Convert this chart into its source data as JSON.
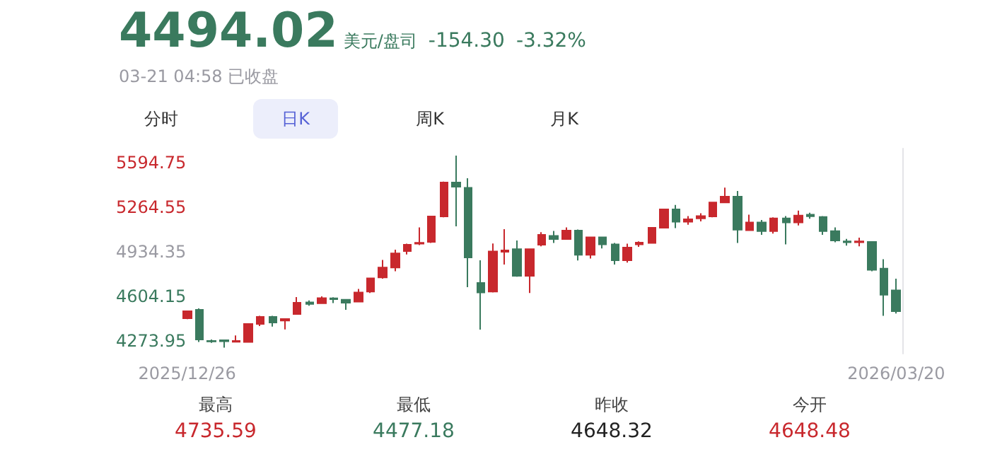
{
  "chart_data": {
    "type": "candlestick",
    "title": "4494.02",
    "annotations": [
      "美元/盘司",
      "-154.30",
      "-3.32%",
      "03-21 04:58 已收盘",
      "分时",
      "日K",
      "周K",
      "月K",
      "最高",
      "4735.59",
      "最低",
      "4477.18",
      "昨收",
      "4648.32",
      "今开",
      "4648.48"
    ],
    "categories": [
      "2025/12/26",
      null,
      null,
      null,
      null,
      null,
      null,
      null,
      null,
      null,
      null,
      null,
      null,
      null,
      null,
      null,
      null,
      null,
      null,
      null,
      null,
      null,
      null,
      null,
      null,
      null,
      null,
      null,
      null,
      null,
      null,
      null,
      null,
      null,
      null,
      null,
      null,
      null,
      null,
      null,
      null,
      null,
      null,
      null,
      null,
      null,
      null,
      null,
      null,
      null,
      null,
      null,
      null,
      null,
      null,
      null,
      null,
      null,
      "2026/03/20"
    ],
    "ohlc": [
      [
        4442,
        4500,
        4435,
        4494
      ],
      [
        4505,
        4515,
        4267,
        4285
      ],
      [
        4275,
        4285,
        4260,
        4270
      ],
      [
        4280,
        4283,
        4225,
        4272
      ],
      [
        4268,
        4315,
        4265,
        4275
      ],
      [
        4267,
        4405,
        4265,
        4400
      ],
      [
        4400,
        4460,
        4385,
        4452
      ],
      [
        4452,
        4460,
        4380,
        4410
      ],
      [
        4425,
        4440,
        4360,
        4437
      ],
      [
        4473,
        4599,
        4470,
        4557
      ],
      [
        4560,
        4575,
        4535,
        4548
      ],
      [
        4554,
        4605,
        4550,
        4592
      ],
      [
        4590,
        4598,
        4555,
        4584
      ],
      [
        4580,
        4585,
        4505,
        4558
      ],
      [
        4565,
        4660,
        4560,
        4634
      ],
      [
        4640,
        4740,
        4630,
        4738
      ],
      [
        4745,
        4875,
        4735,
        4818
      ],
      [
        4818,
        4950,
        4790,
        4923
      ],
      [
        4940,
        4995,
        4915,
        4987
      ],
      [
        4995,
        5115,
        4985,
        5002
      ],
      [
        5008,
        5200,
        5000,
        5197
      ],
      [
        5197,
        5455,
        5190,
        5448
      ],
      [
        5448,
        5647,
        5123,
        5417
      ],
      [
        5409,
        5480,
        4673,
        4893
      ],
      [
        4704,
        4872,
        4358,
        4634
      ],
      [
        4640,
        4997,
        4634,
        4937
      ],
      [
        4935,
        5102,
        4840,
        4945
      ],
      [
        4955,
        5018,
        4750,
        4756
      ],
      [
        4756,
        4960,
        4630,
        4955
      ],
      [
        4987,
        5080,
        4975,
        5060
      ],
      [
        5053,
        5090,
        5000,
        5029
      ],
      [
        5029,
        5115,
        5025,
        5092
      ],
      [
        5092,
        5100,
        4870,
        4913
      ],
      [
        4913,
        5045,
        4885,
        5042
      ],
      [
        5042,
        5045,
        4960,
        4990
      ],
      [
        4990,
        5000,
        4840,
        4872
      ],
      [
        4872,
        4995,
        4855,
        4966
      ],
      [
        4990,
        5012,
        4972,
        5003
      ],
      [
        5000,
        5118,
        4995,
        5113
      ],
      [
        5113,
        5255,
        5108,
        5249
      ],
      [
        5249,
        5282,
        5110,
        5158
      ],
      [
        5158,
        5200,
        5135,
        5176
      ],
      [
        5183,
        5220,
        5160,
        5200
      ],
      [
        5197,
        5305,
        5190,
        5301
      ],
      [
        5301,
        5410,
        5295,
        5343
      ],
      [
        5343,
        5385,
        5000,
        5099
      ],
      [
        5095,
        5210,
        5090,
        5152
      ],
      [
        5152,
        5170,
        5060,
        5088
      ],
      [
        5088,
        5190,
        5070,
        5183
      ],
      [
        5183,
        5200,
        4990,
        5152
      ],
      [
        5152,
        5240,
        5130,
        5204
      ],
      [
        5210,
        5225,
        5180,
        5198
      ],
      [
        5193,
        5200,
        5060,
        5088
      ],
      [
        5088,
        5115,
        5005,
        5018
      ],
      [
        5012,
        5030,
        4980,
        5005
      ],
      [
        5005,
        5040,
        4975,
        5012
      ],
      [
        5008,
        5010,
        4790,
        4801
      ],
      [
        4810,
        4880,
        4460,
        4617
      ],
      [
        4648.48,
        4735.59,
        4477.18,
        4494.02
      ]
    ],
    "ylim": [
      4180,
      5700
    ],
    "yticks": [
      4273.95,
      4604.15,
      4934.35,
      5264.55,
      5594.75
    ],
    "grid": false
  }
}
